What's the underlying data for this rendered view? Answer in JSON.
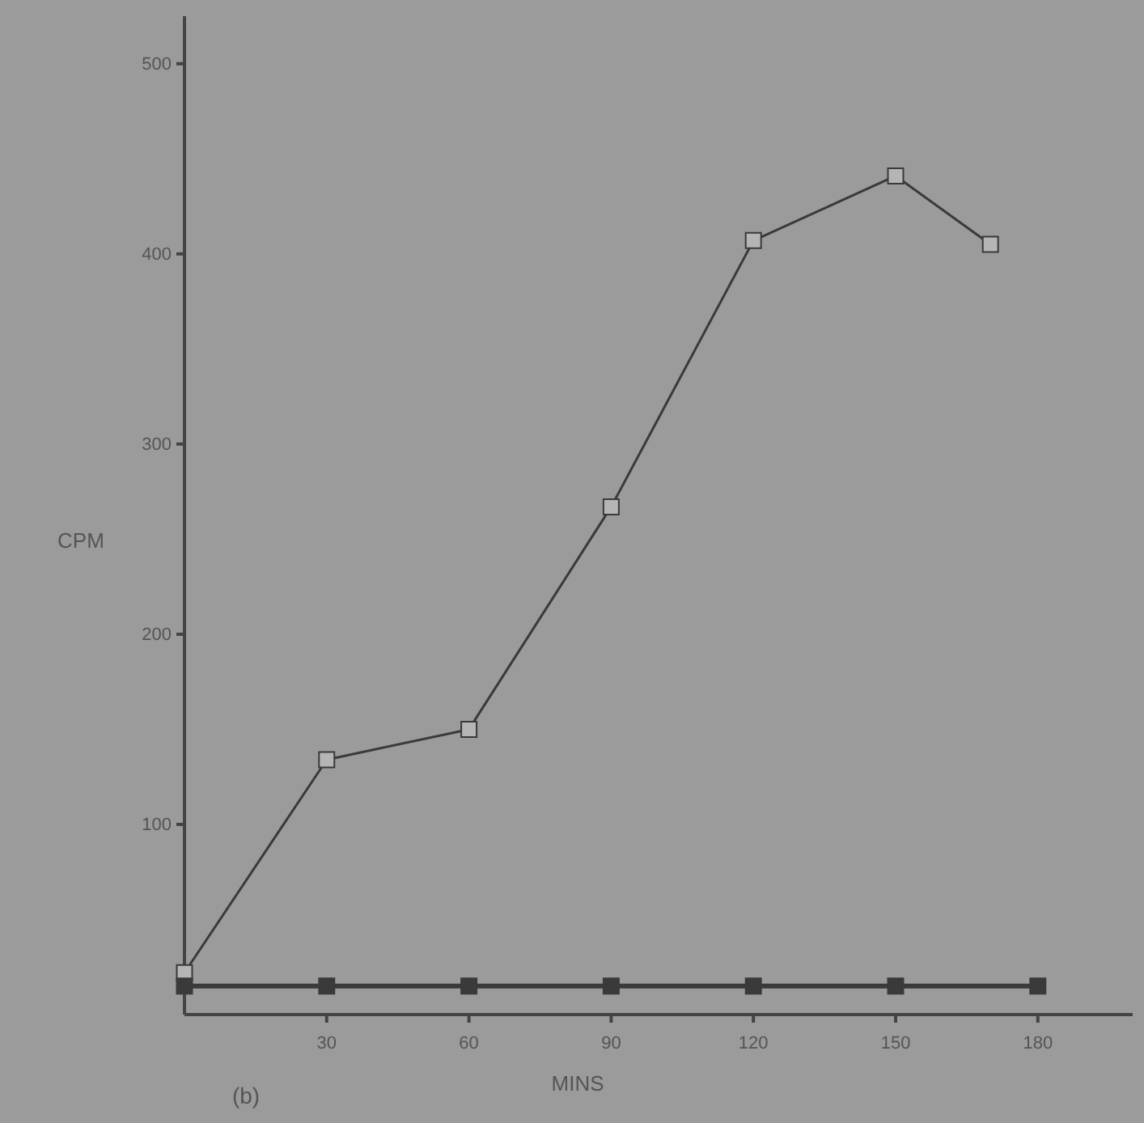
{
  "chart_data": {
    "type": "line",
    "xlabel": "MINS",
    "ylabel": "CPM",
    "annotations": [
      "(b)"
    ],
    "xlim": [
      0,
      200
    ],
    "xticks": [
      30,
      60,
      90,
      120,
      150,
      180
    ],
    "ylim": [
      0,
      525
    ],
    "yticks": [
      100,
      200,
      300,
      400,
      500
    ],
    "grid": false,
    "series": [
      {
        "color": "#3a3a3a",
        "marker": "square",
        "x": [
          0,
          30,
          60,
          90,
          120,
          150,
          170
        ],
        "values": [
          22,
          134,
          150,
          267,
          407,
          441,
          405
        ]
      },
      {
        "color": "#3a3a3a",
        "marker": "square",
        "x": [
          0,
          30,
          60,
          90,
          120,
          150,
          180
        ],
        "values": [
          15,
          15,
          15,
          15,
          15,
          15,
          15
        ]
      }
    ]
  }
}
